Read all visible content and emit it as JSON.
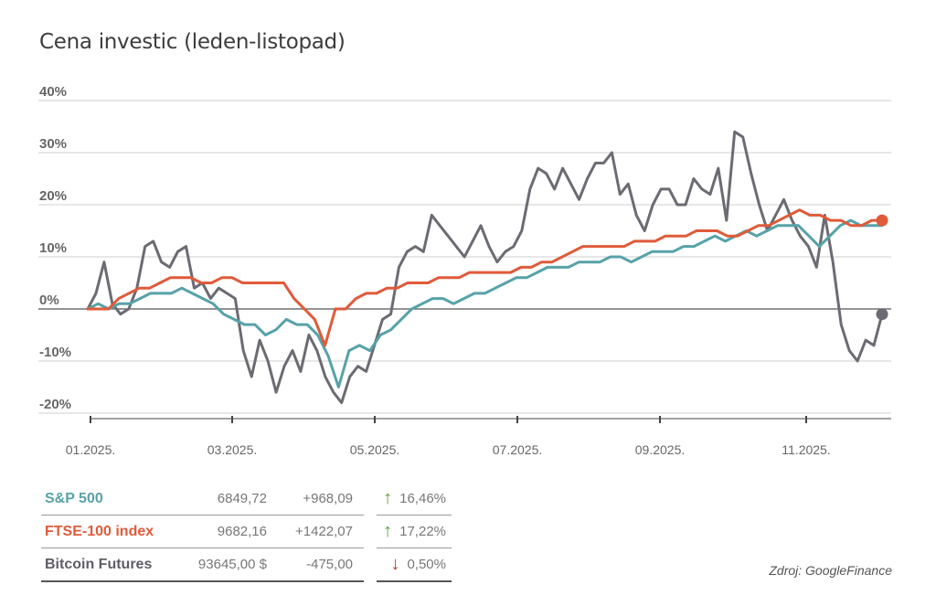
{
  "title": "Cena investic (leden-listopad)",
  "source": "Zdroj: GoogleFinance",
  "chart_data": {
    "type": "line",
    "ylim": [
      -20,
      40
    ],
    "yticks": [
      "40%",
      "30%",
      "20%",
      "10%",
      "0%",
      "-10%",
      "-20%"
    ],
    "xticks": [
      "01.2025.",
      "03.2025.",
      "05.2025.",
      "07.2025.",
      "09.2025.",
      "11.2025."
    ],
    "series": [
      {
        "name": "Bitcoin Futures",
        "color": "#6b6b73",
        "values": [
          0,
          3,
          9,
          1,
          -1,
          0,
          4,
          12,
          13,
          9,
          8,
          11,
          12,
          4,
          5,
          2,
          4,
          3,
          2,
          -8,
          -13,
          -6,
          -10,
          -16,
          -11,
          -8,
          -12,
          -5,
          -8,
          -13,
          -16,
          -18,
          -13,
          -11,
          -12,
          -7,
          -2,
          -1,
          8,
          11,
          12,
          11,
          18,
          16,
          14,
          12,
          10,
          13,
          16,
          12,
          9,
          11,
          12,
          15,
          23,
          27,
          26,
          23,
          27,
          24,
          21,
          25,
          28,
          28,
          30,
          22,
          24,
          18,
          15,
          20,
          23,
          23,
          20,
          20,
          25,
          23,
          22,
          27,
          17,
          34,
          33,
          26,
          20,
          15,
          18,
          21,
          17,
          14,
          12,
          8,
          18,
          9,
          -3,
          -8,
          -10,
          -6,
          -7,
          -1
        ]
      },
      {
        "name": "S&P 500",
        "color": "#57a2a8",
        "values": [
          0,
          1,
          0,
          1,
          1,
          2,
          3,
          3,
          3,
          4,
          3,
          2,
          1,
          -1,
          -2,
          -3,
          -3,
          -5,
          -4,
          -2,
          -3,
          -3,
          -5,
          -9,
          -15,
          -8,
          -7,
          -8,
          -5,
          -4,
          -2,
          0,
          1,
          2,
          2,
          1,
          2,
          3,
          3,
          4,
          5,
          6,
          6,
          7,
          8,
          8,
          8,
          9,
          9,
          9,
          10,
          10,
          9,
          10,
          11,
          11,
          11,
          12,
          12,
          13,
          14,
          13,
          14,
          15,
          14,
          15,
          16,
          16,
          16,
          14,
          12,
          14,
          16,
          17,
          16,
          16,
          16
        ]
      },
      {
        "name": "FTSE-100 index",
        "color": "#e05a3a",
        "values": [
          0,
          0,
          0,
          2,
          3,
          4,
          4,
          5,
          6,
          6,
          6,
          5,
          5,
          6,
          6,
          5,
          5,
          5,
          5,
          5,
          2,
          0,
          -2,
          -7,
          0,
          0,
          2,
          3,
          3,
          4,
          4,
          5,
          5,
          5,
          6,
          6,
          6,
          7,
          7,
          7,
          7,
          7,
          8,
          8,
          9,
          9,
          10,
          11,
          12,
          12,
          12,
          12,
          12,
          13,
          13,
          13,
          14,
          14,
          14,
          15,
          15,
          15,
          14,
          14,
          15,
          16,
          16,
          17,
          18,
          19,
          18,
          18,
          17,
          17,
          16,
          16,
          17,
          17
        ]
      }
    ]
  },
  "table": [
    {
      "name": "S&P 500",
      "color": "#57a2a8",
      "price": "6849,72",
      "change": "+968,09",
      "direction": "up",
      "direction_color": "#5a9e3c",
      "arrow": "↑",
      "percent": "16,46%"
    },
    {
      "name": "FTSE-100 index",
      "color": "#e05a3a",
      "price": "9682,16",
      "change": "+1422,07",
      "direction": "up",
      "direction_color": "#5a9e3c",
      "arrow": "↑",
      "percent": "17,22%"
    },
    {
      "name": "Bitcoin Futures",
      "color": "#5e5e66",
      "price": "93645,00 $",
      "change": "-475,00",
      "direction": "down",
      "direction_color": "#c0392b",
      "arrow": "↓",
      "percent": "0,50%"
    }
  ]
}
